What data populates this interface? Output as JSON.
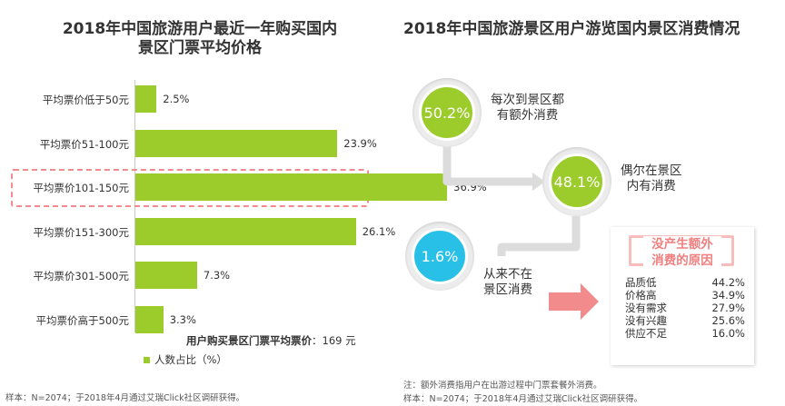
{
  "left_chart": {
    "title_line1": "2018年中国旅游用户最近一年购买国内",
    "title_line2": "景区门票平均价格",
    "average_label": "用户购买景区门票平均票价",
    "average_value": "：169 元",
    "legend": "人数占比（%）",
    "source": "样本：N=2074；于2018年4月通过艾瑞Click社区调研获得。"
  },
  "chart_data": {
    "type": "bar",
    "orientation": "horizontal",
    "categories": [
      "平均票价低于50元",
      "平均票价51-100元",
      "平均票价101-150元",
      "平均票价151-300元",
      "平均票价301-500元",
      "平均票价高于500元"
    ],
    "values": [
      2.5,
      23.9,
      36.9,
      26.1,
      7.3,
      3.3
    ],
    "value_labels": [
      "2.5%",
      "23.9%",
      "36.9%",
      "26.1%",
      "7.3%",
      "3.3%"
    ],
    "highlighted_index": 2,
    "xlim": [
      0,
      40
    ],
    "color": "#9bcc2c",
    "highlight_color": "#f28c8c"
  },
  "right_chart": {
    "title": "2018年中国旅游景区用户游览国内景区消费情况",
    "stages": [
      {
        "value": "50.2%",
        "label1": "每次到景区都",
        "label2": "有额外消费",
        "color": "#9bcc2c"
      },
      {
        "value": "48.1%",
        "label1": "偶尔在景区",
        "label2": "内有消费",
        "color": "#9bcc2c"
      },
      {
        "value": "1.6%",
        "label1": "从来不在",
        "label2": "景区消费",
        "color": "#29c0e8"
      }
    ],
    "reasons_title1": "没产生额外",
    "reasons_title2": "消费的原因",
    "reasons": [
      {
        "name": "品质低",
        "value": "44.2%"
      },
      {
        "name": "价格高",
        "value": "34.9%"
      },
      {
        "name": "没有需求",
        "value": "27.9%"
      },
      {
        "name": "没有兴趣",
        "value": "25.6%"
      },
      {
        "name": "供应不足",
        "value": "16.0%"
      }
    ],
    "note": "注：额外消费指用户在出游过程中门票套餐外消费。",
    "source": "样本：N=2074；于2018年4月通过艾瑞Click社区调研获得。",
    "accent_color": "#f07f7f"
  }
}
